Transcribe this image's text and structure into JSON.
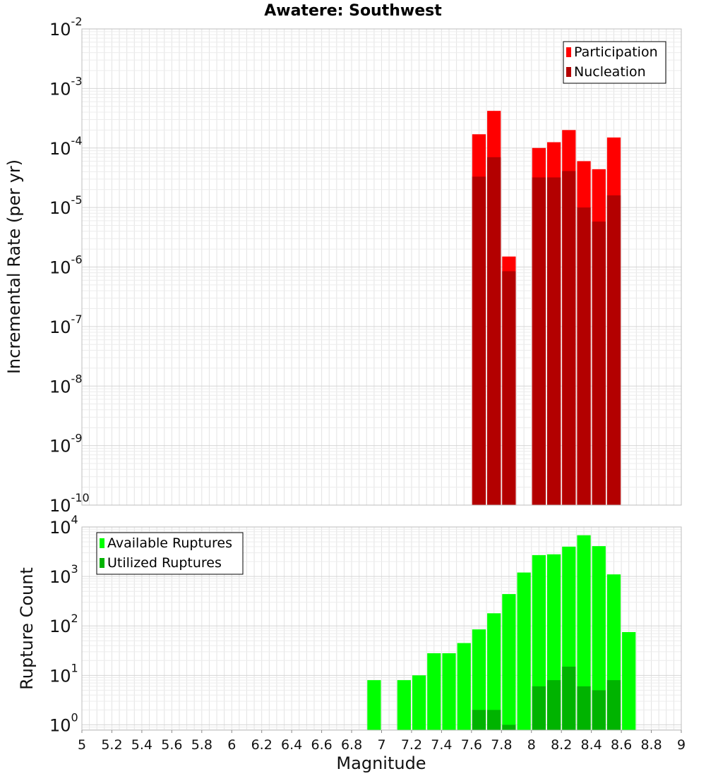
{
  "title": "Awatere: Southwest",
  "chart_data": [
    {
      "type": "bar",
      "ylabel": "Incremental Rate (per yr)",
      "yscale": "log",
      "ylim": [
        1e-10,
        0.01
      ],
      "xlim": [
        5,
        9
      ],
      "ytick_exponents": [
        -10,
        -9,
        -8,
        -7,
        -6,
        -5,
        -4,
        -3,
        -2
      ],
      "grid": true,
      "legend_position": "top-right",
      "x": [
        7.65,
        7.75,
        7.85,
        8.05,
        8.15,
        8.25,
        8.35,
        8.45,
        8.55
      ],
      "series": [
        {
          "name": "Participation",
          "color": "#ff0000",
          "values": [
            0.00017,
            0.00042,
            1.5e-06,
            0.0001,
            0.000125,
            0.0002,
            6e-05,
            4.4e-05,
            0.00015
          ]
        },
        {
          "name": "Nucleation",
          "color": "#b30000",
          "values": [
            3.3e-05,
            7e-05,
            8.5e-07,
            3.2e-05,
            3.2e-05,
            4.1e-05,
            1e-05,
            5.8e-06,
            1.6e-05
          ]
        }
      ]
    },
    {
      "type": "bar",
      "xlabel": "Magnitude",
      "ylabel": "Rupture Count",
      "yscale": "log",
      "ylim": [
        0.78,
        10000
      ],
      "xlim": [
        5,
        9
      ],
      "ytick_exponents": [
        0,
        1,
        2,
        3,
        4
      ],
      "grid": true,
      "legend_position": "top-left",
      "xticks": [
        "5",
        "5.2",
        "5.4",
        "5.6",
        "5.8",
        "6",
        "6.2",
        "6.4",
        "6.6",
        "6.8",
        "7",
        "7.2",
        "7.4",
        "7.6",
        "7.8",
        "8",
        "8.2",
        "8.4",
        "8.6",
        "8.8",
        "9"
      ],
      "series": [
        {
          "name": "Available Ruptures",
          "color": "#00ff00",
          "x": [
            6.95,
            7.15,
            7.25,
            7.35,
            7.45,
            7.55,
            7.65,
            7.75,
            7.85,
            7.95,
            8.05,
            8.15,
            8.25,
            8.35,
            8.45,
            8.55,
            8.65
          ],
          "values": [
            8,
            8,
            10,
            28,
            28,
            45,
            85,
            180,
            440,
            1200,
            2700,
            2800,
            4000,
            6800,
            4100,
            1100,
            75
          ]
        },
        {
          "name": "Utilized Ruptures",
          "color": "#00b300",
          "x": [
            7.65,
            7.75,
            7.85,
            8.05,
            8.15,
            8.25,
            8.35,
            8.45,
            8.55
          ],
          "values": [
            2,
            2,
            1,
            6,
            8,
            15,
            6,
            5,
            8
          ]
        }
      ]
    }
  ]
}
